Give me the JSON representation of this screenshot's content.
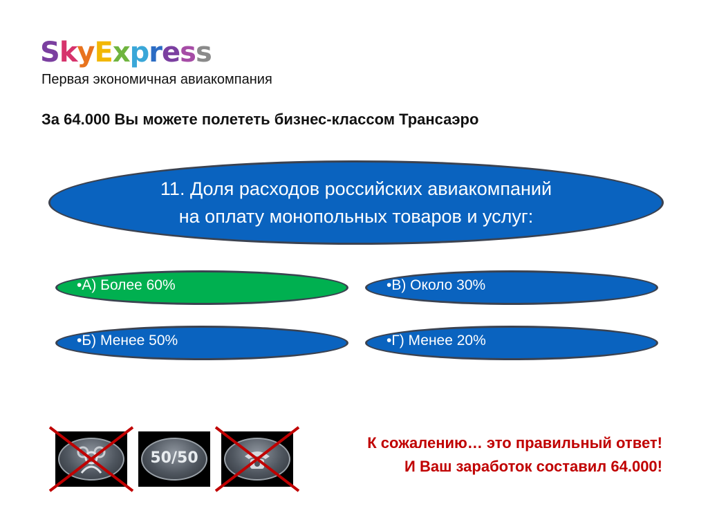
{
  "logo": {
    "text": "SkyExpress"
  },
  "tagline": "Первая экономичная авиакомпания",
  "headline": "За 64.000 Вы можете полететь бизнес-классом Трансаэро",
  "question": {
    "line1": "11. Доля расходов российских авиакомпаний",
    "line2": "на оплату монопольных товаров и услуг:"
  },
  "answers": [
    {
      "label": "•А) Более 60%",
      "selected": true
    },
    {
      "label": "•В) Около 30%",
      "selected": false
    },
    {
      "label": "•Б) Менее 50%",
      "selected": false
    },
    {
      "label": "•Г) Менее 20%",
      "selected": false
    }
  ],
  "lifelines": [
    {
      "name": "ask-audience-icon",
      "used": true
    },
    {
      "name": "fifty-fifty",
      "label": "50/50",
      "used": false
    },
    {
      "name": "phone-friend-icon",
      "used": true
    }
  ],
  "result": {
    "line1": "К сожалению… это правильный ответ!",
    "line2": "И Ваш заработок составил 64.000!"
  },
  "colors": {
    "answer_blue": "#0a63bf",
    "answer_selected": "#00b050",
    "result_red": "#c00000",
    "cross_red": "#c00000"
  }
}
